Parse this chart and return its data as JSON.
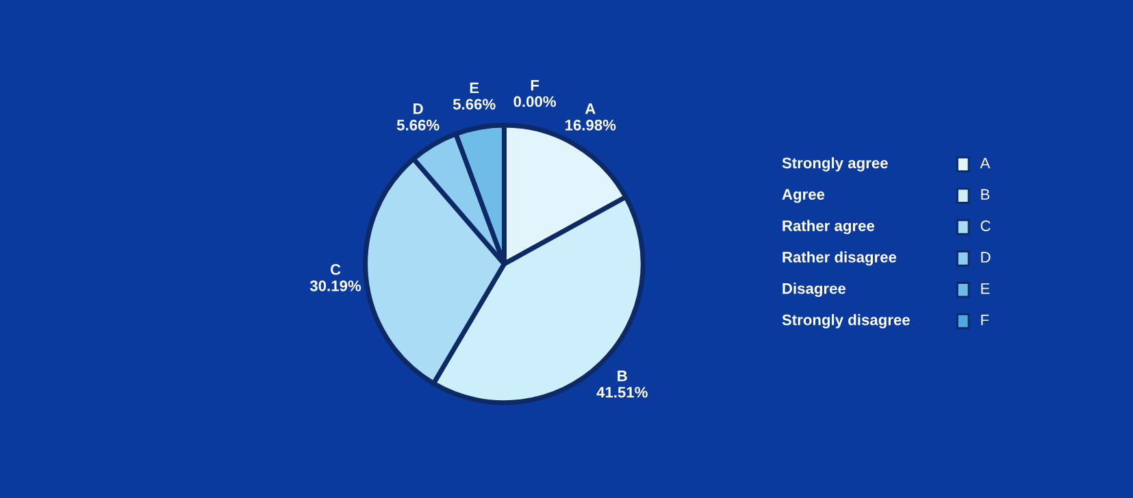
{
  "chart_data": {
    "type": "pie",
    "categories": [
      "A",
      "B",
      "C",
      "D",
      "E",
      "F"
    ],
    "values": [
      16.98,
      41.51,
      30.19,
      5.66,
      5.66,
      0.0
    ],
    "colors": [
      "#e2f5fd",
      "#cdeefb",
      "#abdcf5",
      "#8fcdf0",
      "#70bce9",
      "#4fa9e1"
    ],
    "value_labels": [
      "16.98%",
      "41.51%",
      "30.19%",
      "5.66%",
      "5.66%",
      "0.00%"
    ],
    "legend": "right",
    "annotations": [
      "Strongly agree",
      "Agree",
      "Rather agree",
      "Rather disagree",
      "Disagree",
      "Strongly disagree"
    ]
  }
}
